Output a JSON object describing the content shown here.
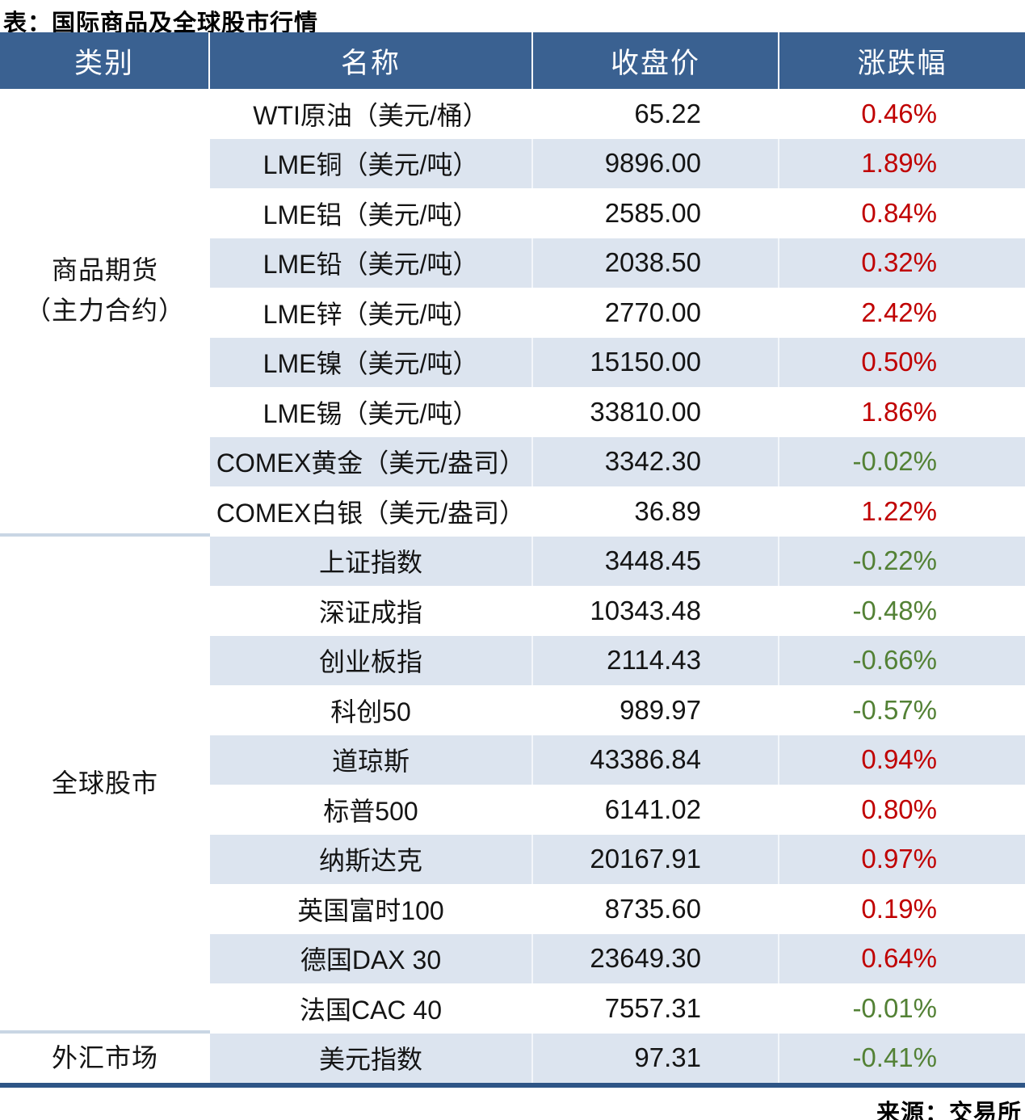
{
  "page": {
    "title": "表：国际商品及全球股市行情",
    "source": "来源：交易所"
  },
  "colors": {
    "header_bg": "#3A6191",
    "alt_row_bg": "#DCE4EF",
    "positive": "#C00000",
    "negative": "#538135",
    "bottom_rule": "#2E5586",
    "section_divider": "#C9D6E4"
  },
  "table": {
    "headers": [
      "类别",
      "名称",
      "收盘价",
      "涨跌幅"
    ],
    "sections": [
      {
        "category_lines": [
          "商品期货",
          "（主力合约）"
        ],
        "rows": [
          {
            "name": "WTI原油（美元/桶）",
            "close": "65.22",
            "change": "0.46%"
          },
          {
            "name": "LME铜（美元/吨）",
            "close": "9896.00",
            "change": "1.89%"
          },
          {
            "name": "LME铝（美元/吨）",
            "close": "2585.00",
            "change": "0.84%"
          },
          {
            "name": "LME铅（美元/吨）",
            "close": "2038.50",
            "change": "0.32%"
          },
          {
            "name": "LME锌（美元/吨）",
            "close": "2770.00",
            "change": "2.42%"
          },
          {
            "name": "LME镍（美元/吨）",
            "close": "15150.00",
            "change": "0.50%"
          },
          {
            "name": "LME锡（美元/吨）",
            "close": "33810.00",
            "change": "1.86%"
          },
          {
            "name": "COMEX黄金（美元/盎司）",
            "close": "3342.30",
            "change": "-0.02%"
          },
          {
            "name": "COMEX白银（美元/盎司）",
            "close": "36.89",
            "change": "1.22%"
          }
        ]
      },
      {
        "category_lines": [
          "全球股市"
        ],
        "rows": [
          {
            "name": "上证指数",
            "close": "3448.45",
            "change": "-0.22%"
          },
          {
            "name": "深证成指",
            "close": "10343.48",
            "change": "-0.48%"
          },
          {
            "name": "创业板指",
            "close": "2114.43",
            "change": "-0.66%"
          },
          {
            "name": "科创50",
            "close": "989.97",
            "change": "-0.57%"
          },
          {
            "name": "道琼斯",
            "close": "43386.84",
            "change": "0.94%"
          },
          {
            "name": "标普500",
            "close": "6141.02",
            "change": "0.80%"
          },
          {
            "name": "纳斯达克",
            "close": "20167.91",
            "change": "0.97%"
          },
          {
            "name": "英国富时100",
            "close": "8735.60",
            "change": "0.19%"
          },
          {
            "name": "德国DAX 30",
            "close": "23649.30",
            "change": "0.64%"
          },
          {
            "name": "法国CAC 40",
            "close": "7557.31",
            "change": "-0.01%"
          }
        ]
      },
      {
        "category_lines": [
          "外汇市场"
        ],
        "rows": [
          {
            "name": "美元指数",
            "close": "97.31",
            "change": "-0.41%"
          }
        ]
      }
    ]
  }
}
